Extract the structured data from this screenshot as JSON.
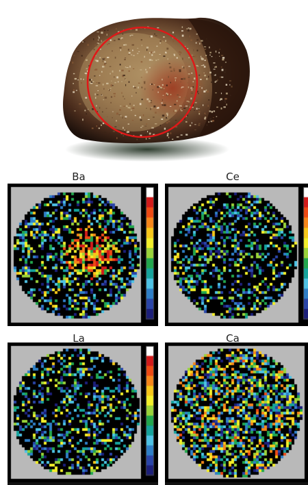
{
  "rock": {
    "circle_color": "#e01818"
  },
  "maps": [
    {
      "element": "Ba",
      "hotspot": "center-right"
    },
    {
      "element": "Ce",
      "hotspot": "none"
    },
    {
      "element": "La",
      "hotspot": "none"
    },
    {
      "element": "Ca",
      "hotspot": "diffuse"
    }
  ],
  "colors": {
    "scale": [
      "#ffffff",
      "#d21b1b",
      "#ee4a14",
      "#f6861a",
      "#f7c71a",
      "#f3ef2a",
      "#9ad33a",
      "#22a64d",
      "#16a39c",
      "#4ec2e5",
      "#2f7fc7",
      "#2a45a8",
      "#1c1f7a"
    ],
    "field_bg": "#b9b9b9",
    "mask": "#000000"
  }
}
